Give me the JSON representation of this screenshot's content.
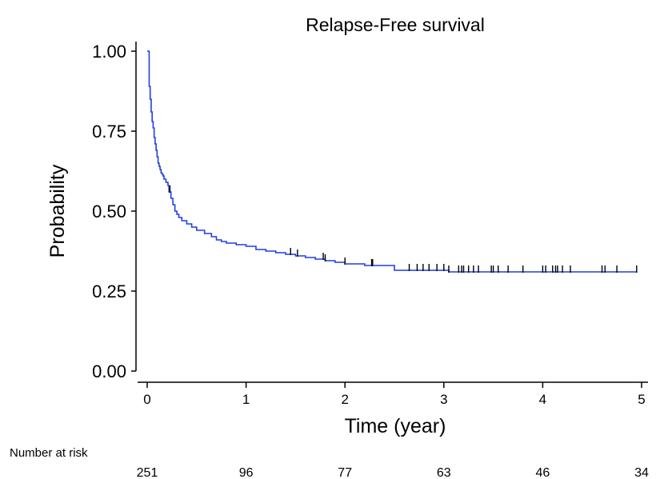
{
  "chart_data": {
    "type": "line",
    "title": "Relapse-Free survival",
    "xlabel": "Time (year)",
    "ylabel": "Probability",
    "xlim": [
      0,
      5
    ],
    "ylim": [
      0,
      1
    ],
    "xticks": [
      0,
      1,
      2,
      3,
      4,
      5
    ],
    "xtick_labels": [
      "0",
      "1",
      "2",
      "3",
      "4",
      "5"
    ],
    "yticks": [
      0,
      0.25,
      0.5,
      0.75,
      1
    ],
    "ytick_labels": [
      "0.00",
      "0.25",
      "0.50",
      "0.75",
      "1.00"
    ],
    "grid": false,
    "line_color": "#1f3fe0",
    "censor_color": "#000000",
    "series": [
      {
        "step": true,
        "x": [
          0,
          0.02,
          0.03,
          0.04,
          0.05,
          0.06,
          0.07,
          0.08,
          0.09,
          0.1,
          0.11,
          0.12,
          0.13,
          0.14,
          0.15,
          0.16,
          0.17,
          0.19,
          0.21,
          0.22,
          0.24,
          0.26,
          0.28,
          0.3,
          0.32,
          0.35,
          0.4,
          0.45,
          0.5,
          0.58,
          0.65,
          0.7,
          0.75,
          0.8,
          0.9,
          1.0,
          1.1,
          1.2,
          1.3,
          1.4,
          1.5,
          1.6,
          1.7,
          1.8,
          1.9,
          2.0,
          2.1,
          2.2,
          2.45,
          2.5,
          3.0,
          3.05,
          4.95
        ],
        "y": [
          1.0,
          0.89,
          0.85,
          0.81,
          0.78,
          0.76,
          0.73,
          0.71,
          0.69,
          0.67,
          0.65,
          0.64,
          0.63,
          0.62,
          0.615,
          0.61,
          0.6,
          0.59,
          0.58,
          0.56,
          0.54,
          0.52,
          0.5,
          0.49,
          0.48,
          0.47,
          0.46,
          0.45,
          0.44,
          0.43,
          0.42,
          0.41,
          0.405,
          0.4,
          0.395,
          0.39,
          0.38,
          0.375,
          0.37,
          0.365,
          0.36,
          0.355,
          0.35,
          0.345,
          0.34,
          0.335,
          0.335,
          0.33,
          0.33,
          0.315,
          0.315,
          0.31,
          0.31
        ]
      }
    ],
    "censor_times": [
      0.23,
      1.45,
      1.52,
      1.78,
      1.8,
      2.0,
      2.27,
      2.28,
      2.65,
      2.73,
      2.79,
      2.85,
      2.93,
      3.0,
      3.05,
      3.15,
      3.18,
      3.2,
      3.25,
      3.3,
      3.35,
      3.48,
      3.5,
      3.55,
      3.65,
      3.8,
      4.0,
      4.03,
      4.1,
      4.13,
      4.15,
      4.2,
      4.28,
      4.6,
      4.63,
      4.75,
      4.95
    ],
    "risk_table": {
      "label": "Number at risk",
      "times": [
        0,
        1,
        2,
        3,
        4,
        5
      ],
      "counts": [
        "251",
        "96",
        "77",
        "63",
        "46",
        "34"
      ]
    }
  }
}
